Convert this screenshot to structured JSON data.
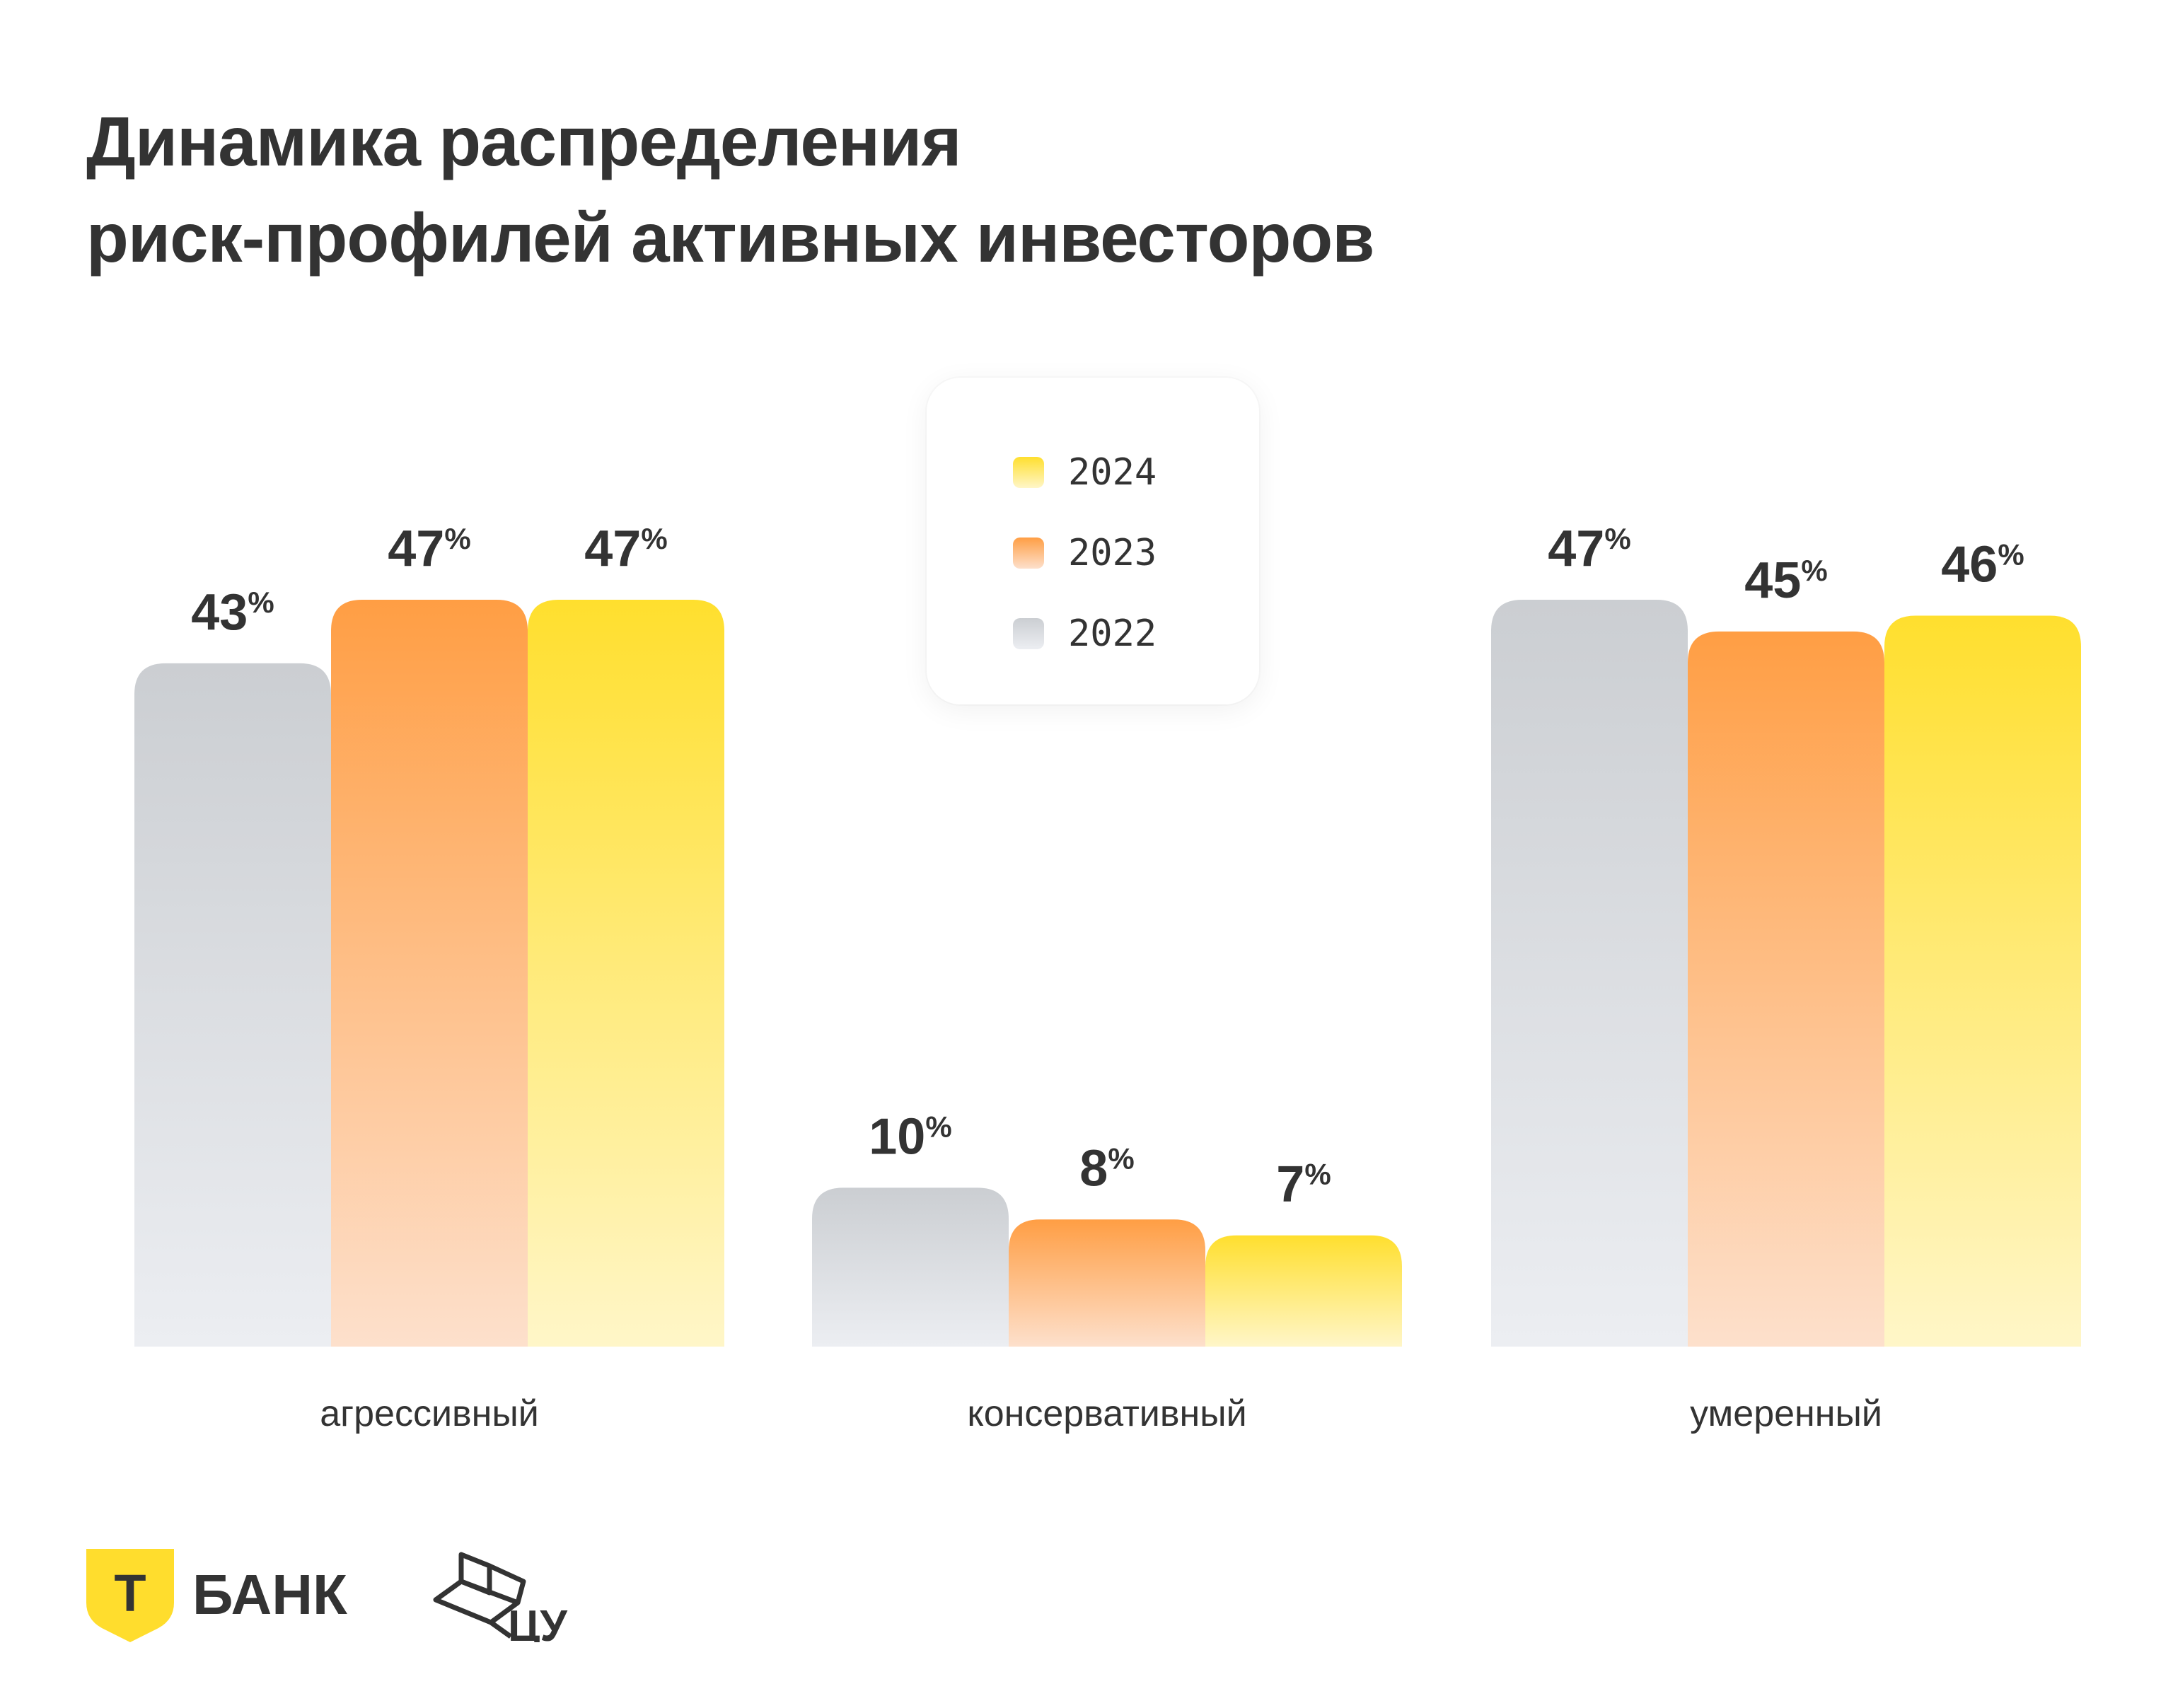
{
  "title": [
    "Динамика распределения",
    "риск-профилей активных инвесторов"
  ],
  "legend": [
    {
      "label": "2024",
      "color_top": "#ffdf2e",
      "color_bottom": "#fff6c8"
    },
    {
      "label": "2023",
      "color_top": "#ff9e44",
      "color_bottom": "#fde0cc"
    },
    {
      "label": "2022",
      "color_top": "#cbced2",
      "color_bottom": "#eceef2"
    }
  ],
  "chart_data": {
    "type": "bar",
    "categories": [
      "агрессивный",
      "консервативный",
      "умеренный"
    ],
    "series": [
      {
        "name": "2022",
        "values": [
          43,
          10,
          47
        ]
      },
      {
        "name": "2023",
        "values": [
          47,
          8,
          45
        ]
      },
      {
        "name": "2024",
        "values": [
          47,
          7,
          46
        ]
      }
    ],
    "value_suffix": "%",
    "ylim": [
      0,
      47.8
    ],
    "grid": false,
    "legend_position": "top-center"
  },
  "logos": {
    "tbank": {
      "shield_letter": "Т",
      "wordmark": "БАНК",
      "shield_color": "#ffdd2d"
    },
    "cu": {
      "wordmark": "ЦУ"
    }
  }
}
